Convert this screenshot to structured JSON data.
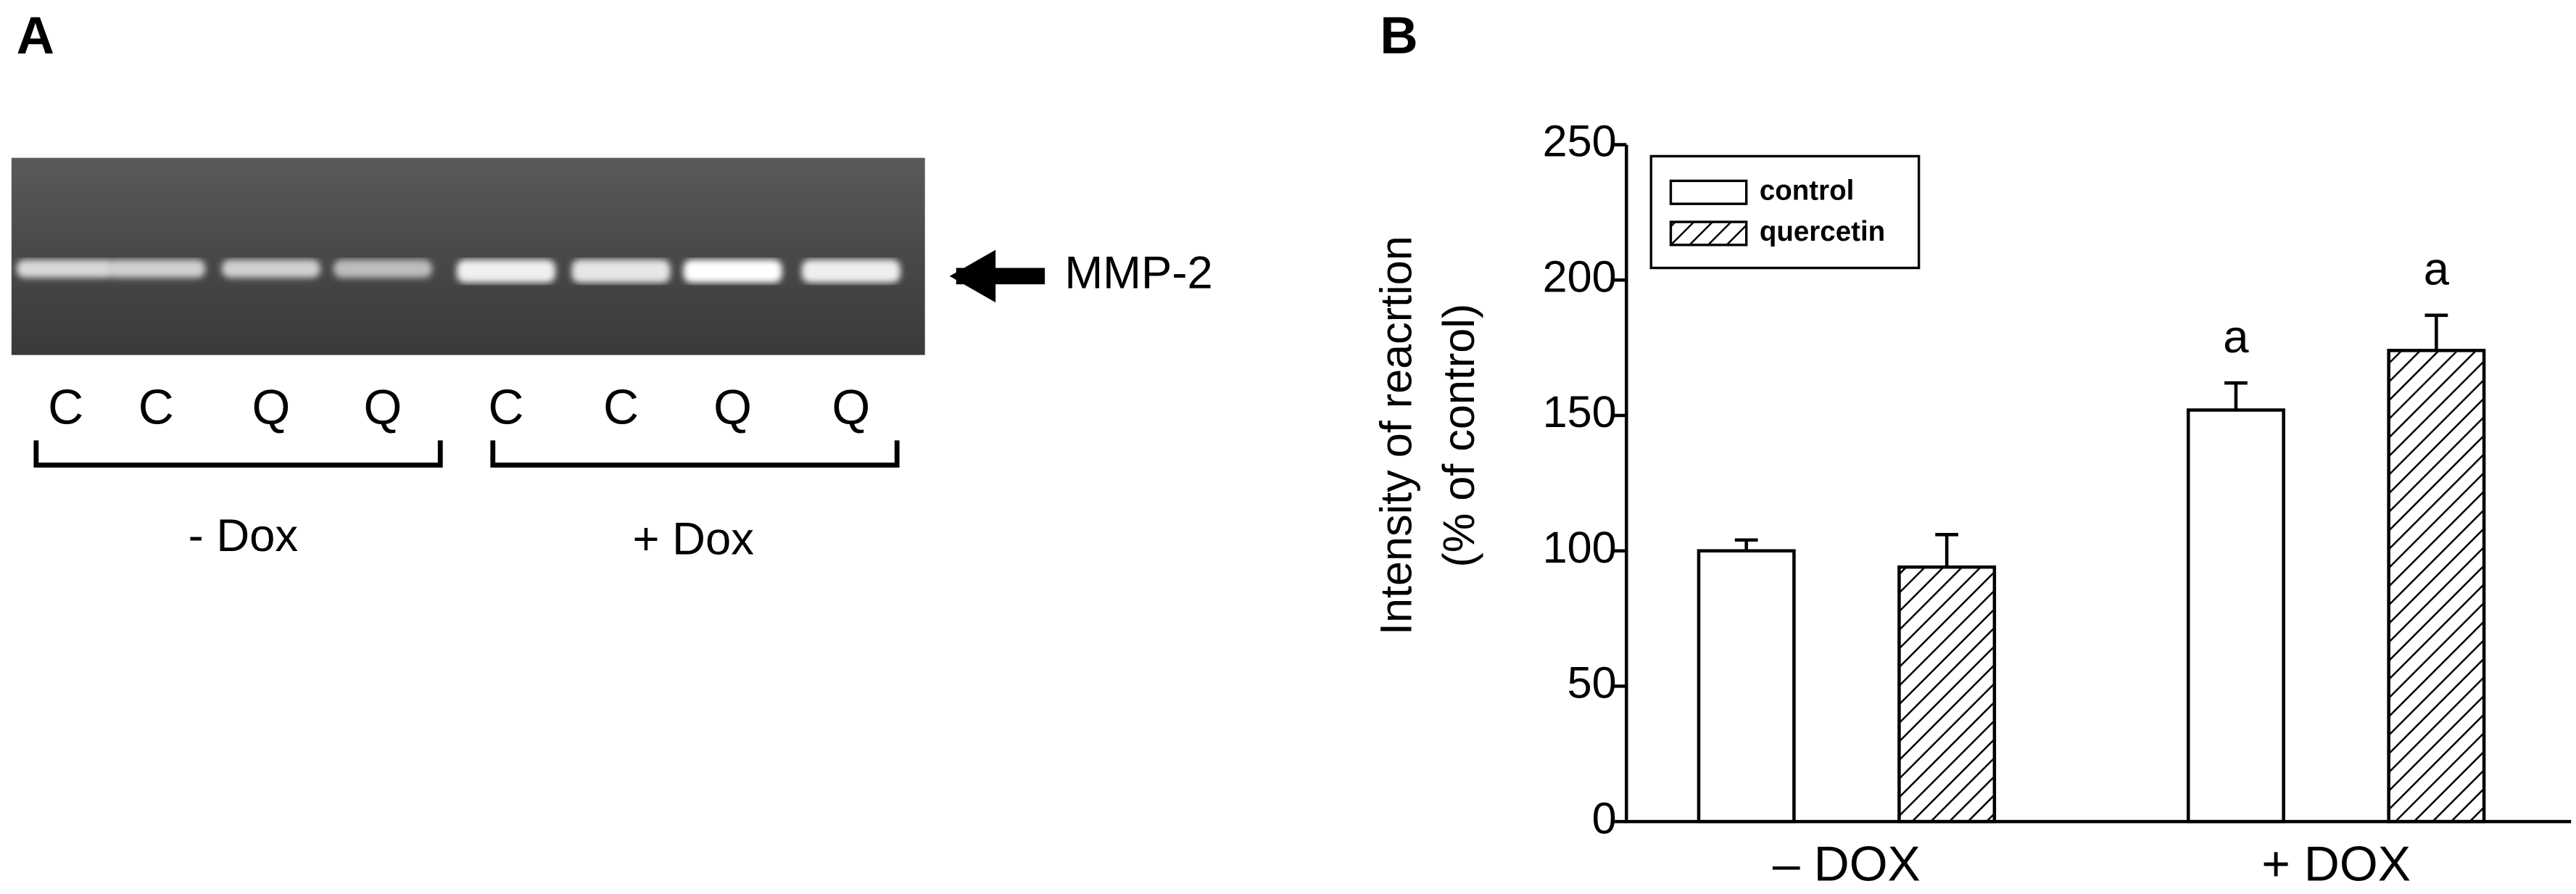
{
  "panel_a": {
    "label": "A",
    "lanes": [
      "C",
      "C",
      "Q",
      "Q",
      "C",
      "C",
      "Q",
      "Q"
    ],
    "groups": [
      "- Dox",
      "+ Dox"
    ],
    "band_label": "MMP-2"
  },
  "chart_data": {
    "type": "bar",
    "panel_label": "B",
    "y_label": [
      "Intensity of reacrtion",
      "(% of control)"
    ],
    "categories": [
      "– DOX",
      "+ DOX"
    ],
    "series": [
      {
        "name": "control",
        "color": "#ffffff",
        "hatch": false,
        "values": [
          100,
          152
        ],
        "errors": [
          4,
          10
        ],
        "significance": [
          null,
          "a"
        ]
      },
      {
        "name": "quercetin",
        "color": "#ffffff",
        "hatch": true,
        "values": [
          94,
          174
        ],
        "errors": [
          12,
          13
        ],
        "significance": [
          null,
          "a"
        ]
      }
    ],
    "ylim": [
      0,
      250
    ],
    "yticks": [
      0,
      50,
      100,
      150,
      200,
      250
    ],
    "legend": "upper left"
  }
}
